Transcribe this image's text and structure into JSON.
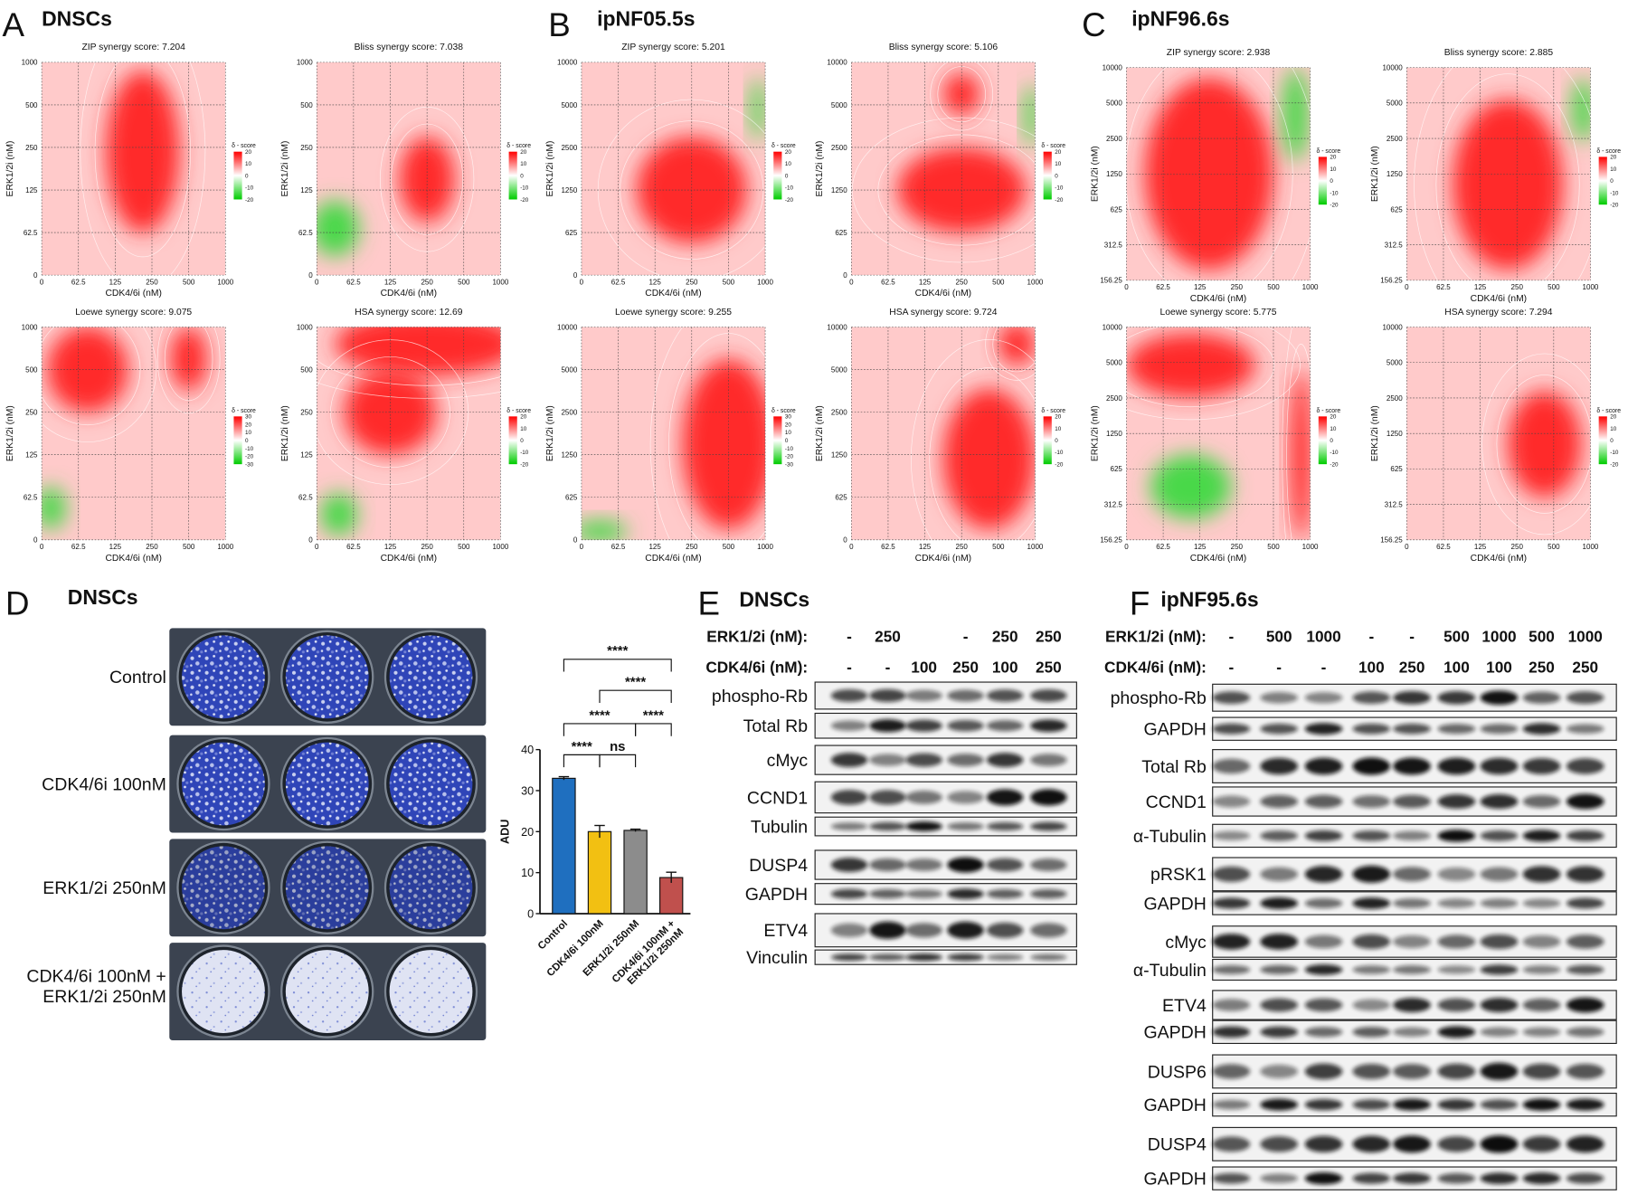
{
  "panels": [
    {
      "letter": "A",
      "title": "DNSCs",
      "plots": [
        {
          "title": "ZIP synergy score: 7.204",
          "xlabel": "CDK4/6i (nM)",
          "ylabel": "ERK1/2i (nM)",
          "xticks": [
            "0",
            "62.5",
            "125",
            "250",
            "500",
            "1000"
          ],
          "yticks": [
            "0",
            "62.5",
            "125",
            "250",
            "500",
            "1000"
          ],
          "legend_title": "δ - score",
          "legend_ticks": [
            "20",
            "10",
            "0",
            "-10",
            "-20"
          ]
        },
        {
          "title": "Bliss synergy score: 7.038",
          "xlabel": "CDK4/6i (nM)",
          "ylabel": "ERK1/2i (nM)",
          "xticks": [
            "0",
            "62.5",
            "125",
            "250",
            "500",
            "1000"
          ],
          "yticks": [
            "0",
            "62.5",
            "125",
            "250",
            "500",
            "1000"
          ],
          "legend_title": "δ - score",
          "legend_ticks": [
            "20",
            "10",
            "0",
            "-10",
            "-20"
          ]
        },
        {
          "title": "Loewe synergy score: 9.075",
          "xlabel": "CDK4/6i (nM)",
          "ylabel": "ERK1/2i (nM)",
          "xticks": [
            "0",
            "62.5",
            "125",
            "250",
            "500",
            "1000"
          ],
          "yticks": [
            "0",
            "62.5",
            "125",
            "250",
            "500",
            "1000"
          ],
          "legend_title": "δ - score",
          "legend_ticks": [
            "30",
            "20",
            "10",
            "0",
            "-10",
            "-20",
            "-30"
          ]
        },
        {
          "title": "HSA synergy score: 12.69",
          "xlabel": "CDK4/6i (nM)",
          "ylabel": "ERK1/2i (nM)",
          "xticks": [
            "0",
            "62.5",
            "125",
            "250",
            "500",
            "1000"
          ],
          "yticks": [
            "0",
            "62.5",
            "125",
            "250",
            "500",
            "1000"
          ],
          "legend_title": "δ - score",
          "legend_ticks": [
            "20",
            "10",
            "0",
            "-10",
            "-20"
          ]
        }
      ]
    },
    {
      "letter": "B",
      "title": "ipNF05.5s",
      "plots": [
        {
          "title": "ZIP synergy score: 5.201",
          "xlabel": "CDK4/6i (nM)",
          "ylabel": "ERK1/2i (nM)",
          "xticks": [
            "0",
            "62.5",
            "125",
            "250",
            "500",
            "1000"
          ],
          "yticks": [
            "0",
            "625",
            "1250",
            "2500",
            "5000",
            "10000"
          ],
          "legend_title": "δ - score",
          "legend_ticks": [
            "20",
            "10",
            "0",
            "-10",
            "-20"
          ]
        },
        {
          "title": "Bliss synergy score: 5.106",
          "xlabel": "CDK4/6i (nM)",
          "ylabel": "ERK1/2i (nM)",
          "xticks": [
            "0",
            "62.5",
            "125",
            "250",
            "500",
            "1000"
          ],
          "yticks": [
            "0",
            "625",
            "1250",
            "2500",
            "5000",
            "10000"
          ],
          "legend_title": "δ - score",
          "legend_ticks": [
            "20",
            "10",
            "0",
            "-10",
            "-20"
          ]
        },
        {
          "title": "Loewe synergy score: 9.255",
          "xlabel": "CDK4/6i (nM)",
          "ylabel": "ERK1/2i (nM)",
          "xticks": [
            "0",
            "62.5",
            "125",
            "250",
            "500",
            "1000"
          ],
          "yticks": [
            "0",
            "625",
            "1250",
            "2500",
            "5000",
            "10000"
          ],
          "legend_title": "δ - score",
          "legend_ticks": [
            "30",
            "20",
            "10",
            "0",
            "-10",
            "-20",
            "-30"
          ]
        },
        {
          "title": "HSA synergy score: 9.724",
          "xlabel": "CDK4/6i (nM)",
          "ylabel": "ERK1/2i (nM)",
          "xticks": [
            "0",
            "62.5",
            "125",
            "250",
            "500",
            "1000"
          ],
          "yticks": [
            "0",
            "625",
            "1250",
            "2500",
            "5000",
            "10000"
          ],
          "legend_title": "δ - score",
          "legend_ticks": [
            "20",
            "10",
            "0",
            "-10",
            "-20"
          ]
        }
      ]
    },
    {
      "letter": "C",
      "title": "ipNF96.6s",
      "plots": [
        {
          "title": "ZIP synergy score: 2.938",
          "xlabel": "CDK4/6i (nM)",
          "ylabel": "ERK1/2i (nM)",
          "xticks": [
            "0",
            "62.5",
            "125",
            "250",
            "500",
            "1000"
          ],
          "yticks": [
            "156.25",
            "312.5",
            "625",
            "1250",
            "2500",
            "5000",
            "10000"
          ],
          "legend_title": "δ - score",
          "legend_ticks": [
            "20",
            "10",
            "0",
            "-10",
            "-20"
          ]
        },
        {
          "title": "Bliss synergy score: 2.885",
          "xlabel": "CDK4/6i (nM)",
          "ylabel": "ERK1/2i (nM)",
          "xticks": [
            "0",
            "62.5",
            "125",
            "250",
            "500",
            "1000"
          ],
          "yticks": [
            "156.25",
            "312.5",
            "625",
            "1250",
            "2500",
            "5000",
            "10000"
          ],
          "legend_title": "δ - score",
          "legend_ticks": [
            "20",
            "10",
            "0",
            "-10",
            "-20"
          ]
        },
        {
          "title": "Loewe synergy score: 5.775",
          "xlabel": "CDK4/6i (nM)",
          "ylabel": "ERK1/2i (nM)",
          "xticks": [
            "0",
            "62.5",
            "125",
            "250",
            "500",
            "1000"
          ],
          "yticks": [
            "156.25",
            "312.5",
            "625",
            "1250",
            "2500",
            "5000",
            "10000"
          ],
          "legend_title": "δ - score",
          "legend_ticks": [
            "20",
            "10",
            "0",
            "-10",
            "-20"
          ]
        },
        {
          "title": "HSA synergy score: 7.294",
          "xlabel": "CDK4/6i (nM)",
          "ylabel": "ERK1/2i (nM)",
          "xticks": [
            "0",
            "62.5",
            "125",
            "250",
            "500",
            "1000"
          ],
          "yticks": [
            "156.25",
            "312.5",
            "625",
            "1250",
            "2500",
            "5000",
            "10000"
          ],
          "legend_title": "δ - score",
          "legend_ticks": [
            "20",
            "10",
            "0",
            "-10",
            "-20"
          ]
        }
      ]
    }
  ],
  "colony": {
    "letter": "D",
    "title": "DNSCs",
    "labels": [
      "Control",
      "CDK4/6i 100nM",
      "ERK1/2i 250nM",
      "CDK4/6i 100nM +\nERK1/2i 250nM"
    ]
  },
  "chart_data": {
    "type": "bar",
    "ylabel": "ADU",
    "categories": [
      "Control",
      "CDK4/6i 100nM",
      "ERK1/2i 250nM",
      "CDK4/6i 100nM +\nERK1/2i 250nM"
    ],
    "values": [
      33,
      20,
      20.3,
      8.8
    ],
    "errors": [
      0.4,
      1.5,
      0.3,
      1.3
    ],
    "colors": [
      "#1f6fbf",
      "#f2c012",
      "#8c8c8c",
      "#c0504d"
    ],
    "ylim": [
      0,
      40
    ],
    "yticks": [
      0,
      10,
      20,
      30,
      40
    ],
    "annotations": [
      "****",
      "****",
      "****",
      "****",
      "****",
      "ns"
    ]
  },
  "blots": [
    {
      "letter": "E",
      "title": "DNSCs",
      "header": [
        {
          "label": "ERK1/2i (nM):",
          "values": [
            "-",
            "250",
            null,
            "-",
            "250",
            "250"
          ]
        },
        {
          "label": "CDK4/6i (nM):",
          "values": [
            "-",
            "-",
            "100",
            "250",
            "100",
            "250"
          ]
        }
      ],
      "rows": [
        "phospho-Rb",
        "Total Rb",
        "cMyc",
        "CCND1",
        "Tubulin",
        "DUSP4",
        "GAPDH",
        "ETV4",
        "Vinculin"
      ]
    },
    {
      "letter": "F",
      "title": "ipNF95.6s",
      "header": [
        {
          "label": "ERK1/2i (nM):",
          "values": [
            "-",
            "500",
            "1000",
            "-",
            "-",
            "500",
            "1000",
            "500",
            "1000"
          ]
        },
        {
          "label": "CDK4/6i (nM):",
          "values": [
            "-",
            "-",
            "-",
            "100",
            "250",
            "100",
            "100",
            "250",
            "250"
          ]
        }
      ],
      "rows": [
        "phospho-Rb",
        "GAPDH",
        "Total Rb",
        "CCND1",
        "α-Tubulin",
        "pRSK1",
        "GAPDH",
        "cMyc",
        "α-Tubulin",
        "ETV4",
        "GAPDH",
        "DUSP6",
        "GAPDH",
        "DUSP4",
        "GAPDH"
      ]
    }
  ]
}
